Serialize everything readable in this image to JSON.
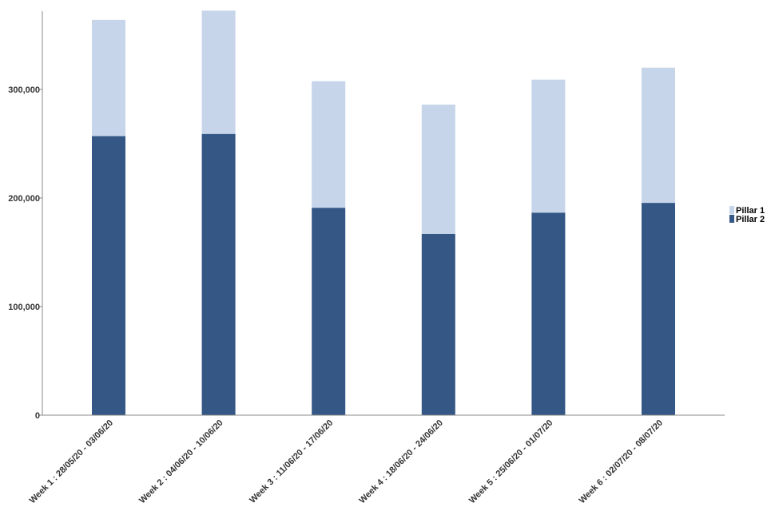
{
  "chart_data": {
    "type": "bar",
    "stacked": true,
    "categories": [
      "Week 1 : 28/05/20 - 03/06/20",
      "Week 2 : 04/06/20 - 10/06/20",
      "Week 3 : 11/06/20 - 17/06/20",
      "Week 4 : 18/06/20 - 24/06/20",
      "Week 5 : 25/06/20 - 01/07/20",
      "Week 6 : 02/07/20 - 08/07/20"
    ],
    "series": [
      {
        "name": "Pillar 2",
        "color": "#345786",
        "values": [
          257000,
          259000,
          191000,
          167000,
          186500,
          195500
        ]
      },
      {
        "name": "Pillar 1",
        "color": "#c6d5e9",
        "values": [
          107000,
          113500,
          116500,
          119000,
          122500,
          124500
        ]
      }
    ],
    "ylim": [
      0,
      372000
    ],
    "yticks": [
      {
        "value": 0,
        "label": "0"
      },
      {
        "value": 100000,
        "label": "100,000"
      },
      {
        "value": 200000,
        "label": "200,000"
      },
      {
        "value": 300000,
        "label": "300,000"
      }
    ],
    "legend": {
      "position": "right",
      "entries": [
        {
          "name": "Pillar 1",
          "color": "#c6d5e9"
        },
        {
          "name": "Pillar 2",
          "color": "#345786"
        }
      ]
    },
    "grid": false,
    "title": "",
    "xlabel": "",
    "ylabel": ""
  }
}
